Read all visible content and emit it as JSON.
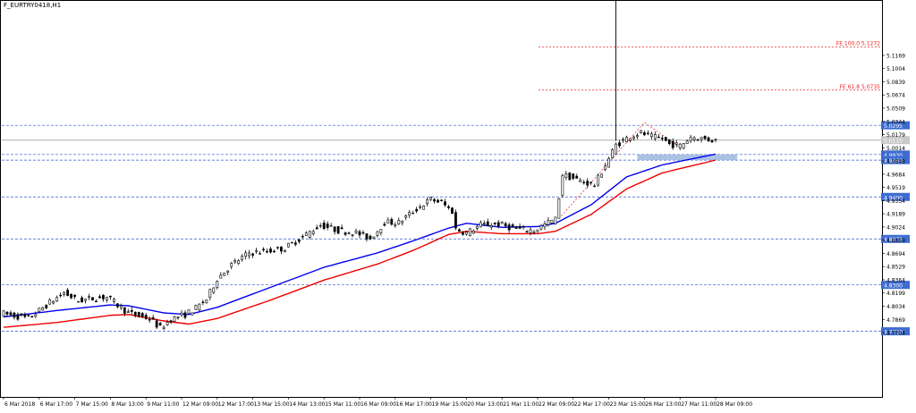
{
  "window": {
    "symbol_label": "F_EURTRY0418,H1"
  },
  "colors": {
    "background": "#ffffff",
    "candle": "#000000",
    "ema_fast": "#0000ee",
    "ema_slow": "#ee0000",
    "level_line": "#3355cc",
    "level_label_bg": "#3d6cd1",
    "fib_line": "#ee2222",
    "zone_fill": "#9bb8e0",
    "bid_line": "#b0b0b0"
  },
  "chart_data": {
    "type": "candlestick",
    "symbol": "F_EURTRY0418",
    "timeframe": "H1",
    "ylim": [
      4.69,
      5.185
    ],
    "y_ticks": [
      "5.1169",
      "5.1004",
      "5.0839",
      "5.0674",
      "5.0509",
      "5.0344",
      "5.0179",
      "5.0014",
      "4.9849",
      "4.9684",
      "4.9519",
      "4.9354",
      "4.9189",
      "4.9024",
      "4.8859",
      "4.8694",
      "4.8529",
      "4.8364",
      "4.8199",
      "4.8034",
      "4.7869",
      "4.7704"
    ],
    "x_labels": [
      "6 Mar 2018",
      "6 Mar 17:00",
      "7 Mar 15:00",
      "8 Mar 13:00",
      "9 Mar 11:00",
      "12 Mar 09:00",
      "12 Mar 17:00",
      "13 Mar 15:00",
      "14 Mar 13:00",
      "15 Mar 11:00",
      "16 Mar 09:00",
      "16 Mar 17:00",
      "19 Mar 15:00",
      "20 Mar 13:00",
      "21 Mar 11:00",
      "22 Mar 09:00",
      "22 Mar 17:00",
      "23 Mar 15:00",
      "26 Mar 13:00",
      "27 Mar 11:00",
      "28 Mar 09:00"
    ],
    "horizontal_levels": [
      {
        "price": 5.0295,
        "label": "5.0295"
      },
      {
        "price": 4.993,
        "label": "4.9930"
      },
      {
        "price": 4.986,
        "label": "4.9860"
      },
      {
        "price": 4.94,
        "label": "4.9400"
      },
      {
        "price": 4.8875,
        "label": "4.8875"
      },
      {
        "price": 4.83,
        "label": "4.8300"
      },
      {
        "price": 4.772,
        "label": "4.7720"
      }
    ],
    "current_price": {
      "price": 5.011,
      "label": "5.0110"
    },
    "fib_levels": [
      {
        "price": 5.1272,
        "label": "FE 100.0 5.1272"
      },
      {
        "price": 5.0735,
        "label": "FE 61.8 5.0735"
      }
    ],
    "zone": {
      "price_top": 4.993,
      "price_bottom": 4.986,
      "start_bar": 178,
      "end_bar": 206
    },
    "fib_path": [
      {
        "bar": 156,
        "price": 4.913
      },
      {
        "bar": 180,
        "price": 5.033
      },
      {
        "bar": 190,
        "price": 5.002
      }
    ],
    "spike": {
      "bar": 172,
      "high": 5.185,
      "low": 5.01
    },
    "ema_fast_keys": [
      [
        0,
        4.79
      ],
      [
        15,
        4.798
      ],
      [
        30,
        4.805
      ],
      [
        35,
        4.804
      ],
      [
        45,
        4.795
      ],
      [
        52,
        4.793
      ],
      [
        60,
        4.802
      ],
      [
        75,
        4.827
      ],
      [
        90,
        4.852
      ],
      [
        105,
        4.87
      ],
      [
        115,
        4.885
      ],
      [
        125,
        4.901
      ],
      [
        130,
        4.907
      ],
      [
        140,
        4.902
      ],
      [
        150,
        4.903
      ],
      [
        155,
        4.907
      ],
      [
        165,
        4.93
      ],
      [
        175,
        4.965
      ],
      [
        185,
        4.98
      ],
      [
        200,
        4.9935
      ]
    ],
    "ema_slow_keys": [
      [
        0,
        4.777
      ],
      [
        15,
        4.783
      ],
      [
        30,
        4.792
      ],
      [
        35,
        4.793
      ],
      [
        45,
        4.785
      ],
      [
        52,
        4.781
      ],
      [
        60,
        4.788
      ],
      [
        75,
        4.811
      ],
      [
        90,
        4.836
      ],
      [
        105,
        4.856
      ],
      [
        115,
        4.873
      ],
      [
        125,
        4.893
      ],
      [
        130,
        4.897
      ],
      [
        140,
        4.894
      ],
      [
        150,
        4.894
      ],
      [
        155,
        4.897
      ],
      [
        165,
        4.918
      ],
      [
        175,
        4.95
      ],
      [
        185,
        4.97
      ],
      [
        200,
        4.986
      ]
    ],
    "price_keys": [
      [
        0,
        4.795
      ],
      [
        8,
        4.788
      ],
      [
        14,
        4.808
      ],
      [
        18,
        4.82
      ],
      [
        22,
        4.81
      ],
      [
        26,
        4.813
      ],
      [
        30,
        4.815
      ],
      [
        33,
        4.805
      ],
      [
        36,
        4.795
      ],
      [
        42,
        4.788
      ],
      [
        45,
        4.776
      ],
      [
        48,
        4.787
      ],
      [
        52,
        4.793
      ],
      [
        55,
        4.801
      ],
      [
        58,
        4.812
      ],
      [
        61,
        4.838
      ],
      [
        65,
        4.855
      ],
      [
        70,
        4.87
      ],
      [
        75,
        4.872
      ],
      [
        80,
        4.876
      ],
      [
        85,
        4.89
      ],
      [
        90,
        4.905
      ],
      [
        95,
        4.898
      ],
      [
        100,
        4.895
      ],
      [
        104,
        4.888
      ],
      [
        108,
        4.908
      ],
      [
        112,
        4.908
      ],
      [
        117,
        4.925
      ],
      [
        121,
        4.937
      ],
      [
        124,
        4.933
      ],
      [
        127,
        4.922
      ],
      [
        128,
        4.9
      ],
      [
        131,
        4.895
      ],
      [
        135,
        4.905
      ],
      [
        140,
        4.906
      ],
      [
        145,
        4.9
      ],
      [
        150,
        4.898
      ],
      [
        154,
        4.908
      ],
      [
        156,
        4.912
      ],
      [
        158,
        4.968
      ],
      [
        163,
        4.96
      ],
      [
        167,
        4.955
      ],
      [
        170,
        4.98
      ],
      [
        173,
        5.005
      ],
      [
        177,
        5.016
      ],
      [
        180,
        5.02
      ],
      [
        183,
        5.015
      ],
      [
        186,
        5.013
      ],
      [
        188,
        5.006
      ],
      [
        191,
        5.004
      ],
      [
        194,
        5.015
      ],
      [
        197,
        5.013
      ],
      [
        200,
        5.011
      ]
    ],
    "bar_count": 201
  }
}
